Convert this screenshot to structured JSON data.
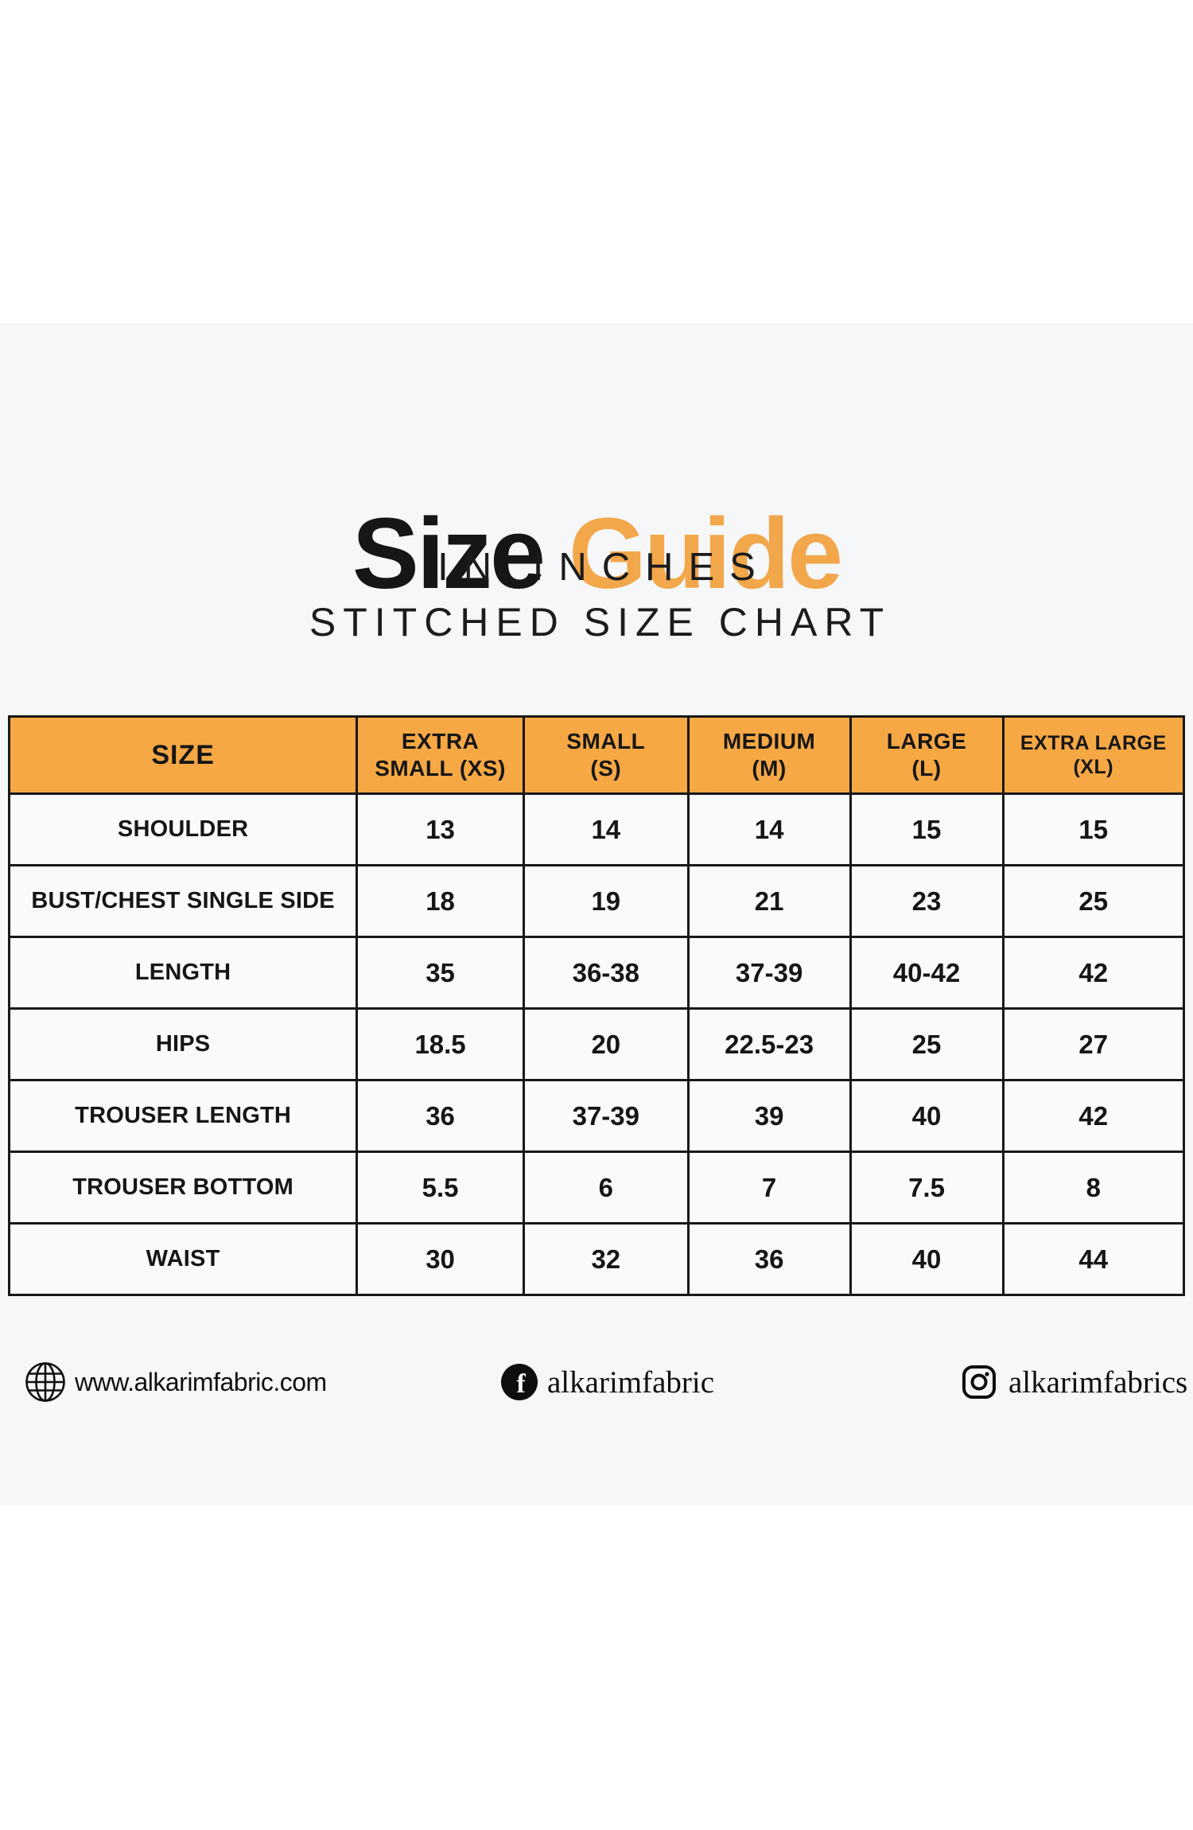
{
  "header": {
    "title_word_black": "Size",
    "title_word_orange": "Guide",
    "subtitle_units": "IN INCHES",
    "subtitle_chart": "STITCHED SIZE CHART"
  },
  "colors": {
    "accent_orange": "#F2A74B",
    "table_header_orange": "#F6A845",
    "text_black": "#161616",
    "band_gray": "#F6F7F8"
  },
  "size_table": {
    "columns": [
      "SIZE",
      "EXTRA\nSMALL (XS)",
      "SMALL\n(S)",
      "MEDIUM\n(M)",
      "LARGE\n(L)",
      "EXTRA LARGE\n(XL)"
    ],
    "rows": [
      {
        "label": "SHOULDER",
        "values": [
          "13",
          "14",
          "14",
          "15",
          "15"
        ]
      },
      {
        "label": "BUST/CHEST SINGLE SIDE",
        "values": [
          "18",
          "19",
          "21",
          "23",
          "25"
        ]
      },
      {
        "label": "LENGTH",
        "values": [
          "35",
          "36-38",
          "37-39",
          "40-42",
          "42"
        ]
      },
      {
        "label": "HIPS",
        "values": [
          "18.5",
          "20",
          "22.5-23",
          "25",
          "27"
        ]
      },
      {
        "label": "TROUSER LENGTH",
        "values": [
          "36",
          "37-39",
          "39",
          "40",
          "42"
        ]
      },
      {
        "label": "TROUSER BOTTOM",
        "values": [
          "5.5",
          "6",
          "7",
          "7.5",
          "8"
        ]
      },
      {
        "label": "WAIST",
        "values": [
          "30",
          "32",
          "36",
          "40",
          "44"
        ]
      }
    ]
  },
  "footer": {
    "website": {
      "icon": "globe-icon",
      "label": "www.alkarimfabric.com"
    },
    "facebook": {
      "icon": "facebook-icon",
      "label": "alkarimfabric"
    },
    "instagram": {
      "icon": "instagram-icon",
      "label": "alkarimfabrics"
    }
  }
}
